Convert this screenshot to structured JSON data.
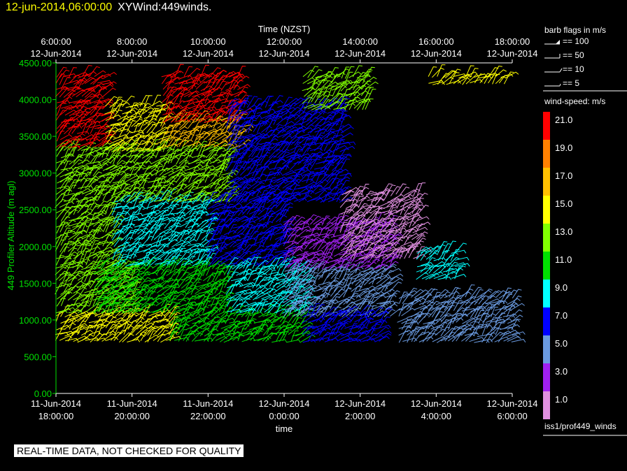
{
  "header": {
    "date_label": "12-jun-2014,06:00:00",
    "title": "XYWind:449winds."
  },
  "quality_note": "REAL-TIME DATA, NOT CHECKED FOR QUALITY",
  "source_label": "iss1/prof449_winds",
  "legend": {
    "flags_title": "barb flags in m/s",
    "flags": [
      "== 100",
      "== 50",
      "== 10",
      "== 5"
    ],
    "colorbar_title": "wind-speed: m/s",
    "colorbar": [
      {
        "label": "21.0",
        "color": "#ff0000"
      },
      {
        "label": "19.0",
        "color": "#ff8000"
      },
      {
        "label": "17.0",
        "color": "#ffc000"
      },
      {
        "label": "15.0",
        "color": "#ffff00"
      },
      {
        "label": "13.0",
        "color": "#80ff00"
      },
      {
        "label": "11.0",
        "color": "#00e000"
      },
      {
        "label": "9.0",
        "color": "#00ffff"
      },
      {
        "label": "7.0",
        "color": "#0000ff"
      },
      {
        "label": "5.0",
        "color": "#6a9ae0"
      },
      {
        "label": "3.0",
        "color": "#a020f0"
      },
      {
        "label": "1.0",
        "color": "#e090e0"
      }
    ]
  },
  "chart_data": {
    "type": "scatter",
    "title": "",
    "top_axis_title": "Time (NZST)",
    "bottom_axis_title": "time",
    "ylabel": "449 Profiler Altitude (m agl)",
    "ylim": [
      0,
      4500
    ],
    "xlim_hours": [
      18,
      30
    ],
    "y_ticks": [
      "0.00",
      "500.00",
      "1000.00",
      "1500.00",
      "2000.00",
      "2500.00",
      "3000.00",
      "3500.00",
      "4000.00",
      "4500.00"
    ],
    "bottom_ticks": [
      {
        "line1": "11-Jun-2014",
        "line2": "18:00:00",
        "hour": 18
      },
      {
        "line1": "11-Jun-2014",
        "line2": "20:00:00",
        "hour": 20
      },
      {
        "line1": "11-Jun-2014",
        "line2": "22:00:00",
        "hour": 22
      },
      {
        "line1": "12-Jun-2014",
        "line2": "0:00:00",
        "hour": 24
      },
      {
        "line1": "12-Jun-2014",
        "line2": "2:00:00",
        "hour": 26
      },
      {
        "line1": "12-Jun-2014",
        "line2": "4:00:00",
        "hour": 28
      },
      {
        "line1": "12-Jun-2014",
        "line2": "6:00:00",
        "hour": 30
      }
    ],
    "top_ticks": [
      {
        "line1": "6:00:00",
        "line2": "12-Jun-2014",
        "hour": 18
      },
      {
        "line1": "8:00:00",
        "line2": "12-Jun-2014",
        "hour": 20
      },
      {
        "line1": "10:00:00",
        "line2": "12-Jun-2014",
        "hour": 22
      },
      {
        "line1": "12:00:00",
        "line2": "12-Jun-2014",
        "hour": 24
      },
      {
        "line1": "14:00:00",
        "line2": "12-Jun-2014",
        "hour": 26
      },
      {
        "line1": "16:00:00",
        "line2": "12-Jun-2014",
        "hour": 28
      },
      {
        "line1": "18:00:00",
        "line2": "12-Jun-2014",
        "hour": 30
      }
    ],
    "barb_regions": [
      {
        "h0": 18.0,
        "h1": 21.0,
        "a0": 650,
        "a1": 1050,
        "speed": 14
      },
      {
        "h0": 18.0,
        "h1": 20.0,
        "a0": 1050,
        "a1": 1700,
        "speed": 12
      },
      {
        "h0": 18.0,
        "h1": 19.5,
        "a0": 1700,
        "a1": 3300,
        "speed": 13
      },
      {
        "h0": 18.0,
        "h1": 19.3,
        "a0": 3300,
        "a1": 4300,
        "speed": 20
      },
      {
        "h0": 19.0,
        "h1": 22.5,
        "a0": 1050,
        "a1": 1700,
        "speed": 10
      },
      {
        "h0": 19.5,
        "h1": 22.0,
        "a0": 1700,
        "a1": 2600,
        "speed": 8
      },
      {
        "h0": 19.5,
        "h1": 22.5,
        "a0": 2600,
        "a1": 3300,
        "speed": 13
      },
      {
        "h0": 19.3,
        "h1": 20.8,
        "a0": 3300,
        "a1": 3900,
        "speed": 15
      },
      {
        "h0": 20.8,
        "h1": 22.8,
        "a0": 3300,
        "a1": 3700,
        "speed": 17
      },
      {
        "h0": 20.8,
        "h1": 22.8,
        "a0": 3700,
        "a1": 4300,
        "speed": 20
      },
      {
        "h0": 21.0,
        "h1": 24.5,
        "a0": 650,
        "a1": 1050,
        "speed": 10
      },
      {
        "h0": 22.0,
        "h1": 24.0,
        "a0": 1700,
        "a1": 2600,
        "speed": 6
      },
      {
        "h0": 22.5,
        "h1": 25.5,
        "a0": 2600,
        "a1": 3900,
        "speed": 7
      },
      {
        "h0": 22.5,
        "h1": 24.5,
        "a0": 1050,
        "a1": 1700,
        "speed": 8
      },
      {
        "h0": 24.0,
        "h1": 26.8,
        "a0": 1050,
        "a1": 1650,
        "speed": 5
      },
      {
        "h0": 24.0,
        "h1": 26.8,
        "a0": 1650,
        "a1": 2300,
        "speed": 3
      },
      {
        "h0": 24.5,
        "h1": 26.5,
        "a0": 650,
        "a1": 1050,
        "speed": 7
      },
      {
        "h0": 25.5,
        "h1": 27.5,
        "a0": 1800,
        "a1": 2700,
        "speed": 1
      },
      {
        "h0": 24.5,
        "h1": 26.2,
        "a0": 3800,
        "a1": 4300,
        "speed": 13
      },
      {
        "h0": 27.0,
        "h1": 30.0,
        "a0": 650,
        "a1": 1300,
        "speed": 4
      },
      {
        "h0": 27.5,
        "h1": 28.5,
        "a0": 1500,
        "a1": 1900,
        "speed": 9
      },
      {
        "h0": 27.8,
        "h1": 29.8,
        "a0": 4200,
        "a1": 4300,
        "speed": 15
      }
    ]
  }
}
